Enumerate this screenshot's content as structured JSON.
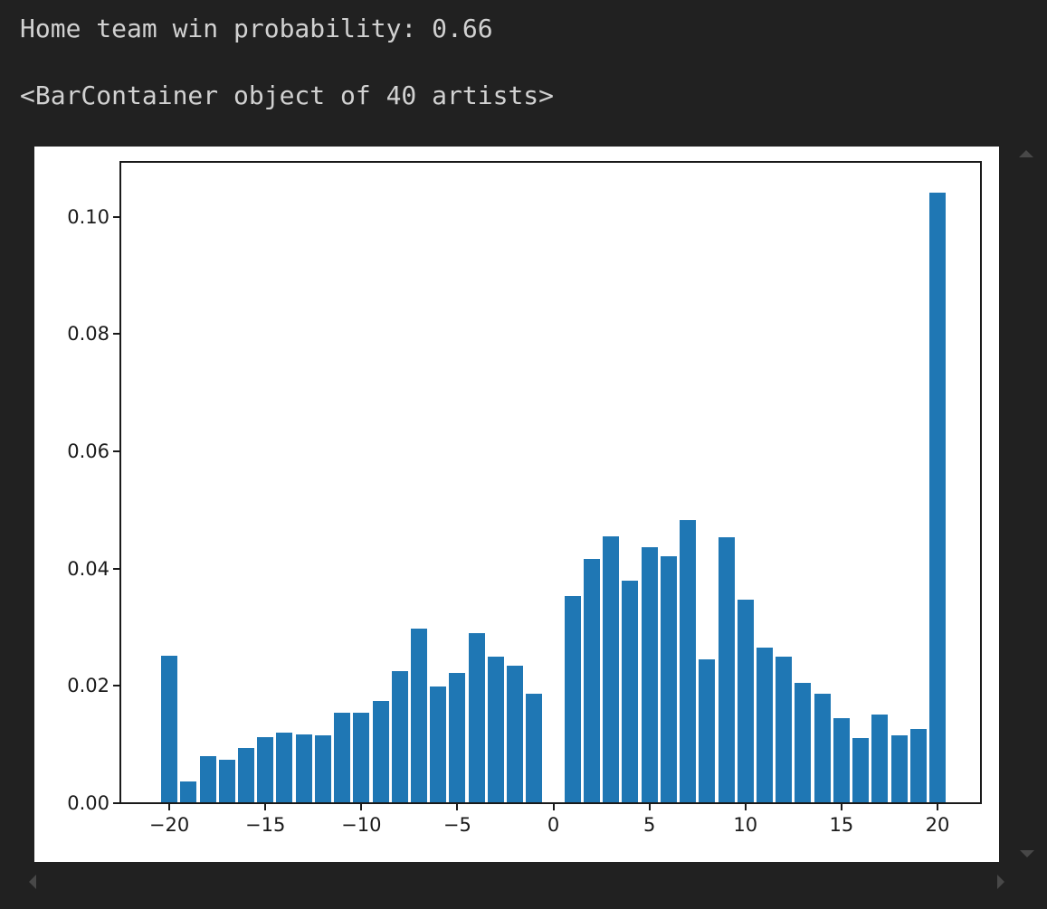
{
  "console": {
    "line1": "Home team win probability: 0.66",
    "line2": "<BarContainer object of 40 artists>"
  },
  "colors": {
    "background": "#212121",
    "console_text": "#d1d1d1",
    "figure_background": "#ffffff",
    "bar": "#1f77b4",
    "axis": "#1a1a1a",
    "scroll_arrow": "#484848"
  },
  "chart_data": {
    "type": "bar",
    "title": "",
    "xlabel": "",
    "ylabel": "",
    "grid": false,
    "legend": null,
    "bar_color": "#1f77b4",
    "bar_width_units": 0.85,
    "xlim": [
      -22.5,
      22.26
    ],
    "ylim": [
      0,
      0.1092
    ],
    "x": [
      -20,
      -19,
      -18,
      -17,
      -16,
      -15,
      -14,
      -13,
      -12,
      -11,
      -10,
      -9,
      -8,
      -7,
      -6,
      -5,
      -4,
      -3,
      -2,
      -1,
      1,
      2,
      3,
      4,
      5,
      6,
      7,
      8,
      9,
      10,
      11,
      12,
      13,
      14,
      15,
      16,
      17,
      18,
      19,
      20
    ],
    "values": [
      0.0251,
      0.0037,
      0.008,
      0.0074,
      0.0094,
      0.0112,
      0.0121,
      0.0118,
      0.0115,
      0.0154,
      0.0154,
      0.0174,
      0.0226,
      0.0297,
      0.0199,
      0.0222,
      0.029,
      0.025,
      0.0234,
      0.0186,
      0.0353,
      0.0416,
      0.0455,
      0.0379,
      0.0437,
      0.0421,
      0.0483,
      0.0245,
      0.0453,
      0.0347,
      0.0266,
      0.025,
      0.0205,
      0.0186,
      0.0145,
      0.0111,
      0.0151,
      0.0116,
      0.0127,
      0.1041
    ],
    "x_ticks": [
      -20,
      -15,
      -10,
      -5,
      0,
      5,
      10,
      15,
      20
    ],
    "x_tick_labels": [
      "−20",
      "−15",
      "−10",
      "−5",
      "0",
      "5",
      "10",
      "15",
      "20"
    ],
    "y_ticks": [
      0.0,
      0.02,
      0.04,
      0.06,
      0.08,
      0.1
    ],
    "y_tick_labels": [
      "0.00",
      "0.02",
      "0.04",
      "0.06",
      "0.08",
      "0.10"
    ]
  }
}
